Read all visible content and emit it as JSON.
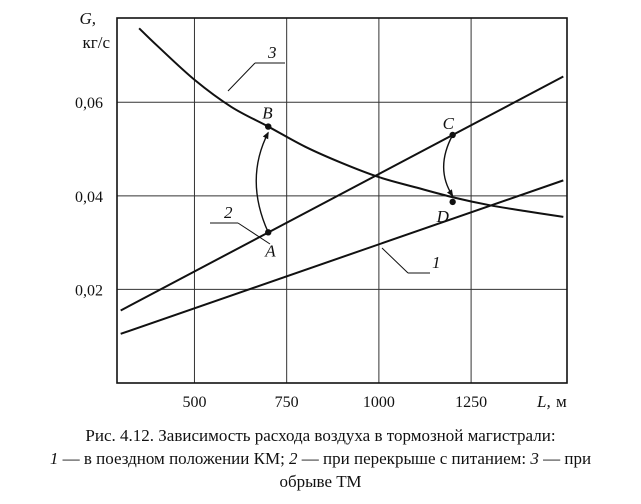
{
  "chart_data": {
    "type": "line",
    "ylabel": "G,",
    "yunit": "кг/с",
    "xlabel": "L,",
    "xunit": "м",
    "xlim": [
      290,
      1510
    ],
    "ylim": [
      0,
      0.078
    ],
    "xticks": [
      500,
      750,
      1000,
      1250
    ],
    "xtick_labels": [
      "500",
      "750",
      "1000",
      "1250"
    ],
    "yticks": [
      0.02,
      0.04,
      0.06
    ],
    "ytick_labels": [
      "0,02",
      "0,04",
      "0,06"
    ],
    "grid": true,
    "series": [
      {
        "name": "1",
        "x": [
          300,
          1500
        ],
        "y": [
          0.0105,
          0.0433
        ]
      },
      {
        "name": "2",
        "x": [
          300,
          1500
        ],
        "y": [
          0.0155,
          0.0655
        ]
      },
      {
        "name": "3",
        "x": [
          350,
          400,
          500,
          600,
          700,
          800,
          900,
          1000,
          1100,
          1200,
          1300,
          1400,
          1500
        ],
        "y": [
          0.0758,
          0.072,
          0.0648,
          0.059,
          0.0548,
          0.0505,
          0.047,
          0.044,
          0.0418,
          0.0397,
          0.038,
          0.0367,
          0.0355
        ]
      }
    ],
    "points": [
      {
        "label": "A",
        "x": 700,
        "y": 0.0322
      },
      {
        "label": "B",
        "x": 700,
        "y": 0.0548
      },
      {
        "label": "C",
        "x": 1200,
        "y": 0.053
      },
      {
        "label": "D",
        "x": 1200,
        "y": 0.0387
      }
    ],
    "arrows": [
      {
        "from": "A",
        "to": "B"
      },
      {
        "from": "C",
        "to": "D"
      }
    ]
  },
  "caption": {
    "line1": "Рис. 4.12. Зависимость расхода воздуха в тормозной магистрали:",
    "line2_num1": "1",
    "line2_text1": " — в поездном положении КМ; ",
    "line2_num2": "2",
    "line2_text2": " — при перекрыше с питанием: ",
    "line2_num3": "3",
    "line2_text3": " — при",
    "line3": "обрыве ТМ"
  }
}
